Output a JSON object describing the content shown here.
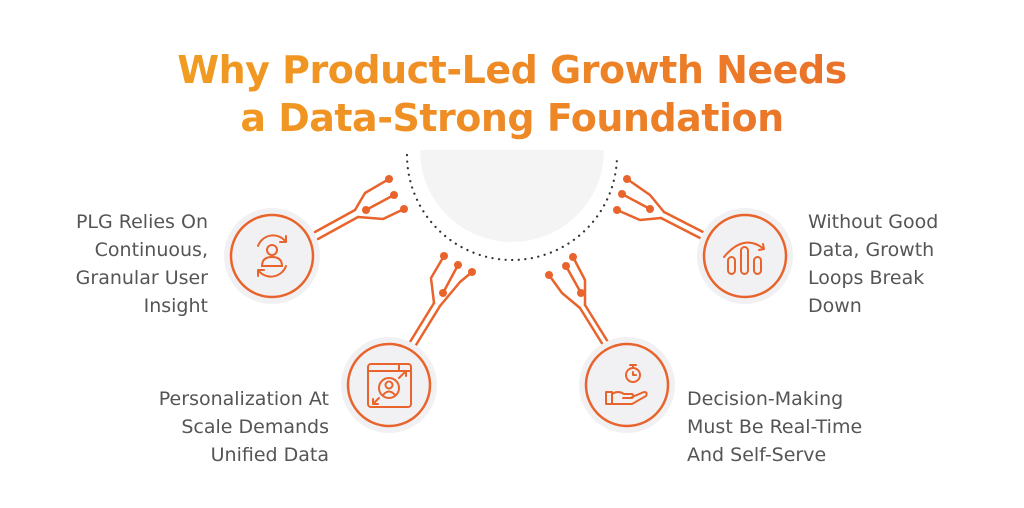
{
  "title": {
    "line1": "Why Product-Led Growth Needs",
    "line2": "a Data-Strong Foundation"
  },
  "colors": {
    "accent": "#e8642c",
    "title_start": "#f2a51f",
    "title_end": "#e8642c",
    "text": "#555555",
    "circle_fill": "#f1f1f3"
  },
  "items": [
    {
      "icon": "user-refresh-icon",
      "lines": [
        "PLG Relies On",
        "Continuous,",
        "Granular User",
        "Insight"
      ]
    },
    {
      "icon": "personalization-window-icon",
      "lines": [
        "Personalization At",
        "Scale Demands",
        "Unified Data"
      ]
    },
    {
      "icon": "hand-stopwatch-icon",
      "lines": [
        "Decision-Making",
        "Must Be Real-Time",
        "And Self-Serve"
      ]
    },
    {
      "icon": "bar-chart-trend-icon",
      "lines": [
        "Without Good",
        "Data, Growth",
        "Loops Break",
        "Down"
      ]
    }
  ]
}
